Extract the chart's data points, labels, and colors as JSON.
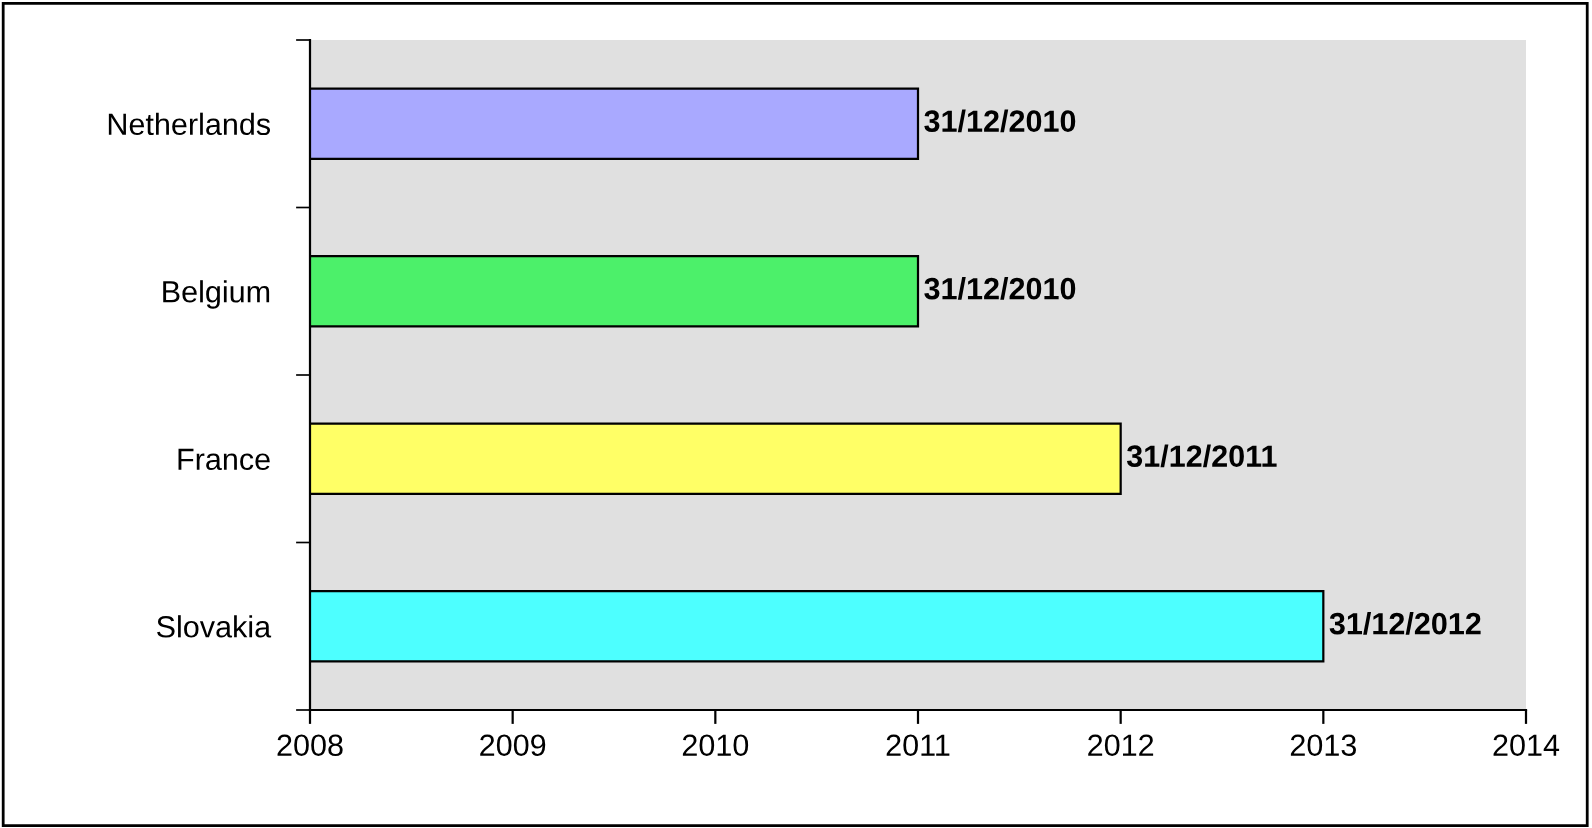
{
  "chart_data": {
    "type": "bar",
    "orientation": "horizontal",
    "categories": [
      "Netherlands",
      "Belgium",
      "France",
      "Slovakia"
    ],
    "values": [
      2011,
      2011,
      2012,
      2013
    ],
    "colors": [
      "#a9a9ff",
      "#4cf06a",
      "#ffff66",
      "#4dffff"
    ],
    "value_labels": [
      "31/12/2010",
      "31/12/2010",
      "31/12/2011",
      "31/12/2012"
    ],
    "xlim": [
      2008,
      2014
    ],
    "xticks": [
      2008,
      2009,
      2010,
      2011,
      2012,
      2013,
      2014
    ],
    "grid": false,
    "legend": false
  }
}
